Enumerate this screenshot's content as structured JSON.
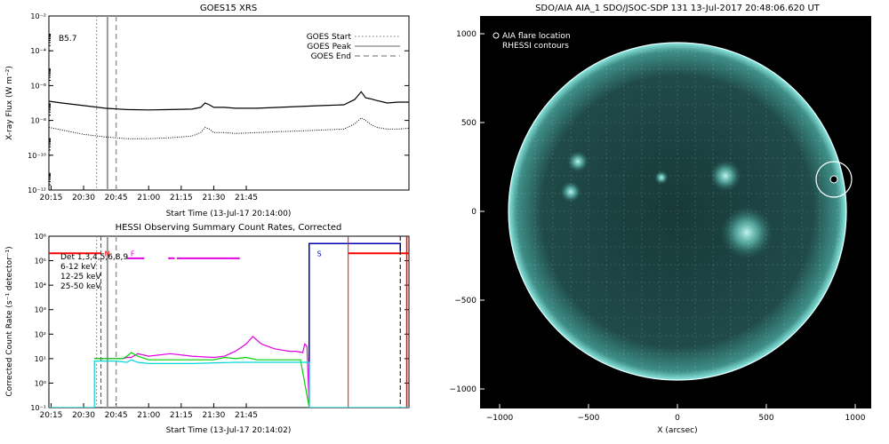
{
  "chart_data": [
    {
      "type": "line",
      "title": "GOES15 XRS",
      "annotation": "B5.7",
      "xlabel": "Start Time (13-Jul-17 20:14:00)",
      "ylabel": "X-ray Flux (W m⁻²)",
      "xticks": [
        "20:15",
        "20:30",
        "20:45",
        "21:00",
        "21:15",
        "21:30",
        "21:45"
      ],
      "yticks": [
        "10⁻¹²",
        "10⁻¹⁰",
        "10⁻⁸",
        "10⁻⁶",
        "10⁻⁴",
        "10⁻²"
      ],
      "ylim_exp": [
        -12,
        -2
      ],
      "yscale": "log",
      "xlim_min": [
        14,
        180
      ],
      "legend": [
        "GOES Start",
        "GOES Peak",
        "GOES End"
      ],
      "legend_position": "top-right",
      "markers_min": {
        "start": 36,
        "peak": 41,
        "end": 45
      },
      "series": [
        {
          "style": "solid",
          "x": [
            14,
            20,
            30,
            40,
            50,
            60,
            70,
            80,
            84,
            86,
            88,
            90,
            95,
            100,
            110,
            120,
            130,
            140,
            150,
            155,
            158,
            160,
            162,
            165,
            170,
            175,
            180
          ],
          "y": [
            -6.9,
            -7.0,
            -7.15,
            -7.3,
            -7.38,
            -7.4,
            -7.38,
            -7.35,
            -7.25,
            -7.0,
            -7.1,
            -7.25,
            -7.25,
            -7.3,
            -7.3,
            -7.25,
            -7.2,
            -7.15,
            -7.1,
            -6.8,
            -6.35,
            -6.7,
            -6.75,
            -6.85,
            -7.0,
            -6.95,
            -6.95
          ]
        },
        {
          "style": "dotted",
          "x": [
            14,
            20,
            30,
            40,
            50,
            60,
            70,
            80,
            84,
            86,
            88,
            90,
            95,
            100,
            110,
            120,
            130,
            140,
            150,
            155,
            158,
            160,
            162,
            165,
            170,
            175,
            180
          ],
          "y": [
            -8.4,
            -8.55,
            -8.8,
            -8.95,
            -9.05,
            -9.05,
            -9.0,
            -8.9,
            -8.7,
            -8.4,
            -8.5,
            -8.7,
            -8.7,
            -8.75,
            -8.7,
            -8.65,
            -8.6,
            -8.55,
            -8.5,
            -8.2,
            -7.85,
            -8.0,
            -8.2,
            -8.4,
            -8.5,
            -8.5,
            -8.45
          ]
        }
      ]
    },
    {
      "type": "line",
      "title": "HESSI Observing Summary Count Rates, Corrected",
      "xlabel": "Start Time (13-Jul-17 20:14:02)",
      "ylabel": "Corrected Count Rate (s⁻¹ detector⁻¹)",
      "xticks": [
        "20:15",
        "20:30",
        "20:45",
        "21:00",
        "21:15",
        "21:30",
        "21:45"
      ],
      "yticks": [
        "10⁻¹",
        "10⁰",
        "10¹",
        "10²",
        "10³",
        "10⁴",
        "10⁵",
        "10⁶"
      ],
      "ylim_exp": [
        -1,
        6
      ],
      "yscale": "log",
      "xlim_min": [
        14,
        180
      ],
      "legend": [
        {
          "label": "Det 1,3,4,5,6,8,9",
          "color": "#000000"
        },
        {
          "label": "6-12 keV",
          "color": "#e000e0"
        },
        {
          "label": "12-25 keV",
          "color": "#00d000"
        },
        {
          "label": "25-50 keV",
          "color": "#00d8d8"
        }
      ],
      "flags": [
        {
          "text": "N",
          "color": "#ff0000",
          "x": 38
        },
        {
          "text": "F",
          "color": "#e000e0",
          "x": 50
        },
        {
          "text": "S",
          "color": "#0000b0",
          "x": 136
        }
      ],
      "series": [
        {
          "name": "6-12 keV",
          "color": "#e000e0",
          "x": [
            35,
            40,
            45,
            48,
            50,
            52,
            55,
            60,
            70,
            80,
            90,
            95,
            100,
            105,
            108,
            112,
            118,
            125,
            128,
            131,
            132,
            133,
            134
          ],
          "y": [
            1.0,
            1.0,
            1.0,
            1.0,
            1.05,
            1.05,
            1.2,
            1.1,
            1.2,
            1.1,
            1.05,
            1.1,
            1.3,
            1.6,
            1.9,
            1.6,
            1.4,
            1.3,
            1.3,
            1.25,
            1.6,
            1.5,
            -1
          ]
        },
        {
          "name": "12-25 keV",
          "color": "#00d000",
          "x": [
            35,
            45,
            48,
            50,
            52,
            55,
            60,
            80,
            90,
            95,
            100,
            105,
            110,
            120,
            130,
            134
          ],
          "y": [
            1.0,
            1.0,
            1.0,
            1.1,
            1.25,
            1.1,
            0.95,
            0.95,
            0.95,
            1.05,
            1.0,
            1.05,
            0.95,
            0.95,
            0.95,
            -1
          ]
        },
        {
          "name": "25-50 keV",
          "color": "#00d8d8",
          "x": [
            14,
            35,
            35,
            45,
            50,
            52,
            55,
            60,
            80,
            100,
            120,
            130,
            134,
            134,
            180
          ],
          "y": [
            -1,
            -1,
            0.9,
            0.9,
            0.85,
            0.95,
            0.85,
            0.8,
            0.8,
            0.85,
            0.85,
            0.85,
            0.85,
            -1,
            -1
          ]
        }
      ]
    },
    {
      "type": "heatmap",
      "title": "SDO/AIA AIA_1 SDO/JSOC-SDP 131 13-Jul-2017 20:48:06.620 UT",
      "xlabel": "X (arcsec)",
      "ylabel": "",
      "xticks": [
        "−1000",
        "−500",
        "0",
        "500",
        "1000"
      ],
      "yticks": [
        "−1000",
        "−500",
        "0",
        "500",
        "1000"
      ],
      "xlim": [
        -1000,
        1000
      ],
      "ylim": [
        -1000,
        1000
      ],
      "legend": [
        "AIA flare location",
        "RHESSI contours"
      ],
      "legend_position": "top-left",
      "disk_radius": 950,
      "flare_location": {
        "x": 880,
        "y": 180
      },
      "bright_regions": [
        {
          "x": 270,
          "y": 200,
          "r": 90
        },
        {
          "x": 390,
          "y": -120,
          "r": 150
        },
        {
          "x": -560,
          "y": 280,
          "r": 60
        },
        {
          "x": -600,
          "y": 110,
          "r": 60
        },
        {
          "x": -90,
          "y": 190,
          "r": 40
        }
      ],
      "colors": {
        "background": "#000000",
        "disk": "#1f4a48",
        "limb": "#8be8e0",
        "active": "#9ff2ea"
      }
    }
  ]
}
